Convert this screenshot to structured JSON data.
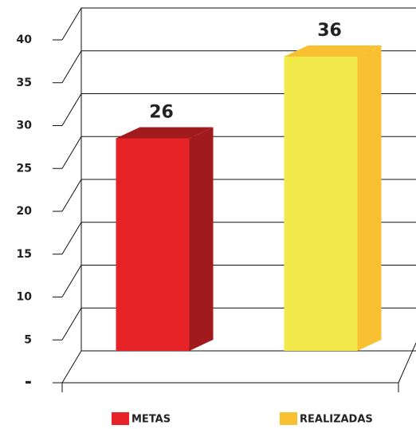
{
  "chart_data": {
    "type": "bar3d",
    "series": [
      {
        "name": "METAS",
        "color": "#e82327",
        "side_color": "#a01a1e",
        "values": [
          26
        ]
      },
      {
        "name": "REALIZADAS",
        "color": "#f2e94b",
        "side_color": "#f9c132",
        "values": [
          36
        ]
      }
    ],
    "ylim": [
      0,
      40
    ],
    "yticks": [
      {
        "value": 0,
        "label": "-"
      },
      5,
      10,
      15,
      20,
      25,
      30,
      35,
      40
    ],
    "grid": true,
    "legend": "bottom"
  }
}
